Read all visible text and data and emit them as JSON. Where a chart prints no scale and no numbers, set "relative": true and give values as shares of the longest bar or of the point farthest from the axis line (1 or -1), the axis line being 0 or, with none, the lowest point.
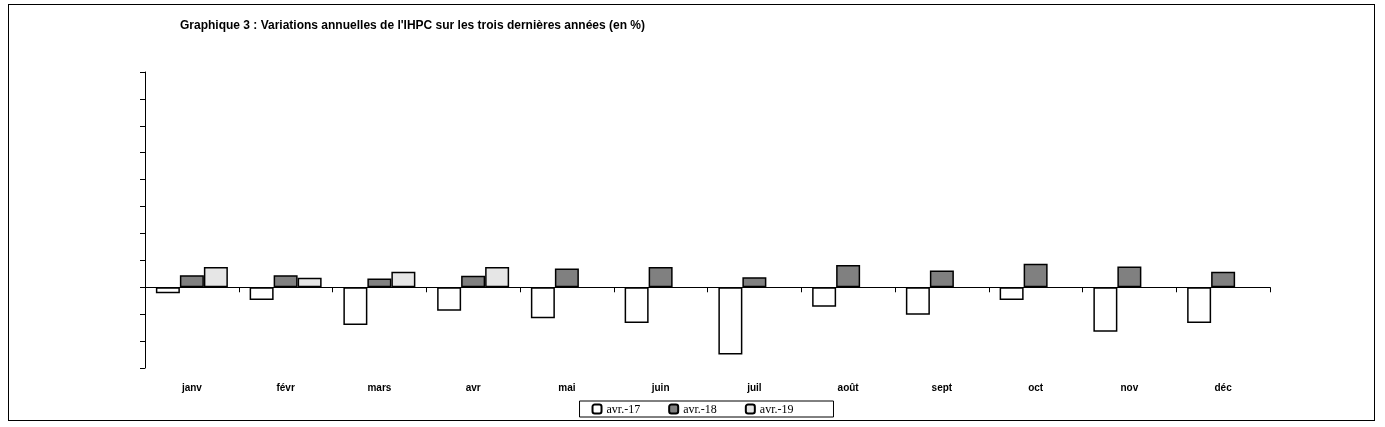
{
  "chart_data": {
    "type": "bar",
    "title": "Graphique 3 : Variations annuelles de l'IHPC sur les trois dernières années (en %)",
    "relative": true,
    "categories": [
      "janv",
      "févr",
      "mars",
      "avr",
      "mai",
      "juin",
      "juil",
      "août",
      "sept",
      "oct",
      "nov",
      "déc"
    ],
    "series": [
      {
        "name": "avr.-17",
        "color": "#ffffff",
        "values": [
          -0.09,
          -0.19,
          -0.56,
          -0.35,
          -0.46,
          -0.53,
          -1,
          -0.29,
          -0.41,
          -0.19,
          -0.66,
          -0.53
        ]
      },
      {
        "name": "avr.-18",
        "color": "#808080",
        "values": [
          0.18,
          0.18,
          0.13,
          0.17,
          0.28,
          0.3,
          0.15,
          0.33,
          0.25,
          0.35,
          0.31,
          0.23
        ]
      },
      {
        "name": "avr.-19",
        "color": "#e6e6e6",
        "values": [
          0.3,
          0.14,
          0.23,
          0.3,
          null,
          null,
          null,
          null,
          null,
          null,
          null,
          null
        ]
      }
    ],
    "legend": "bottom"
  }
}
